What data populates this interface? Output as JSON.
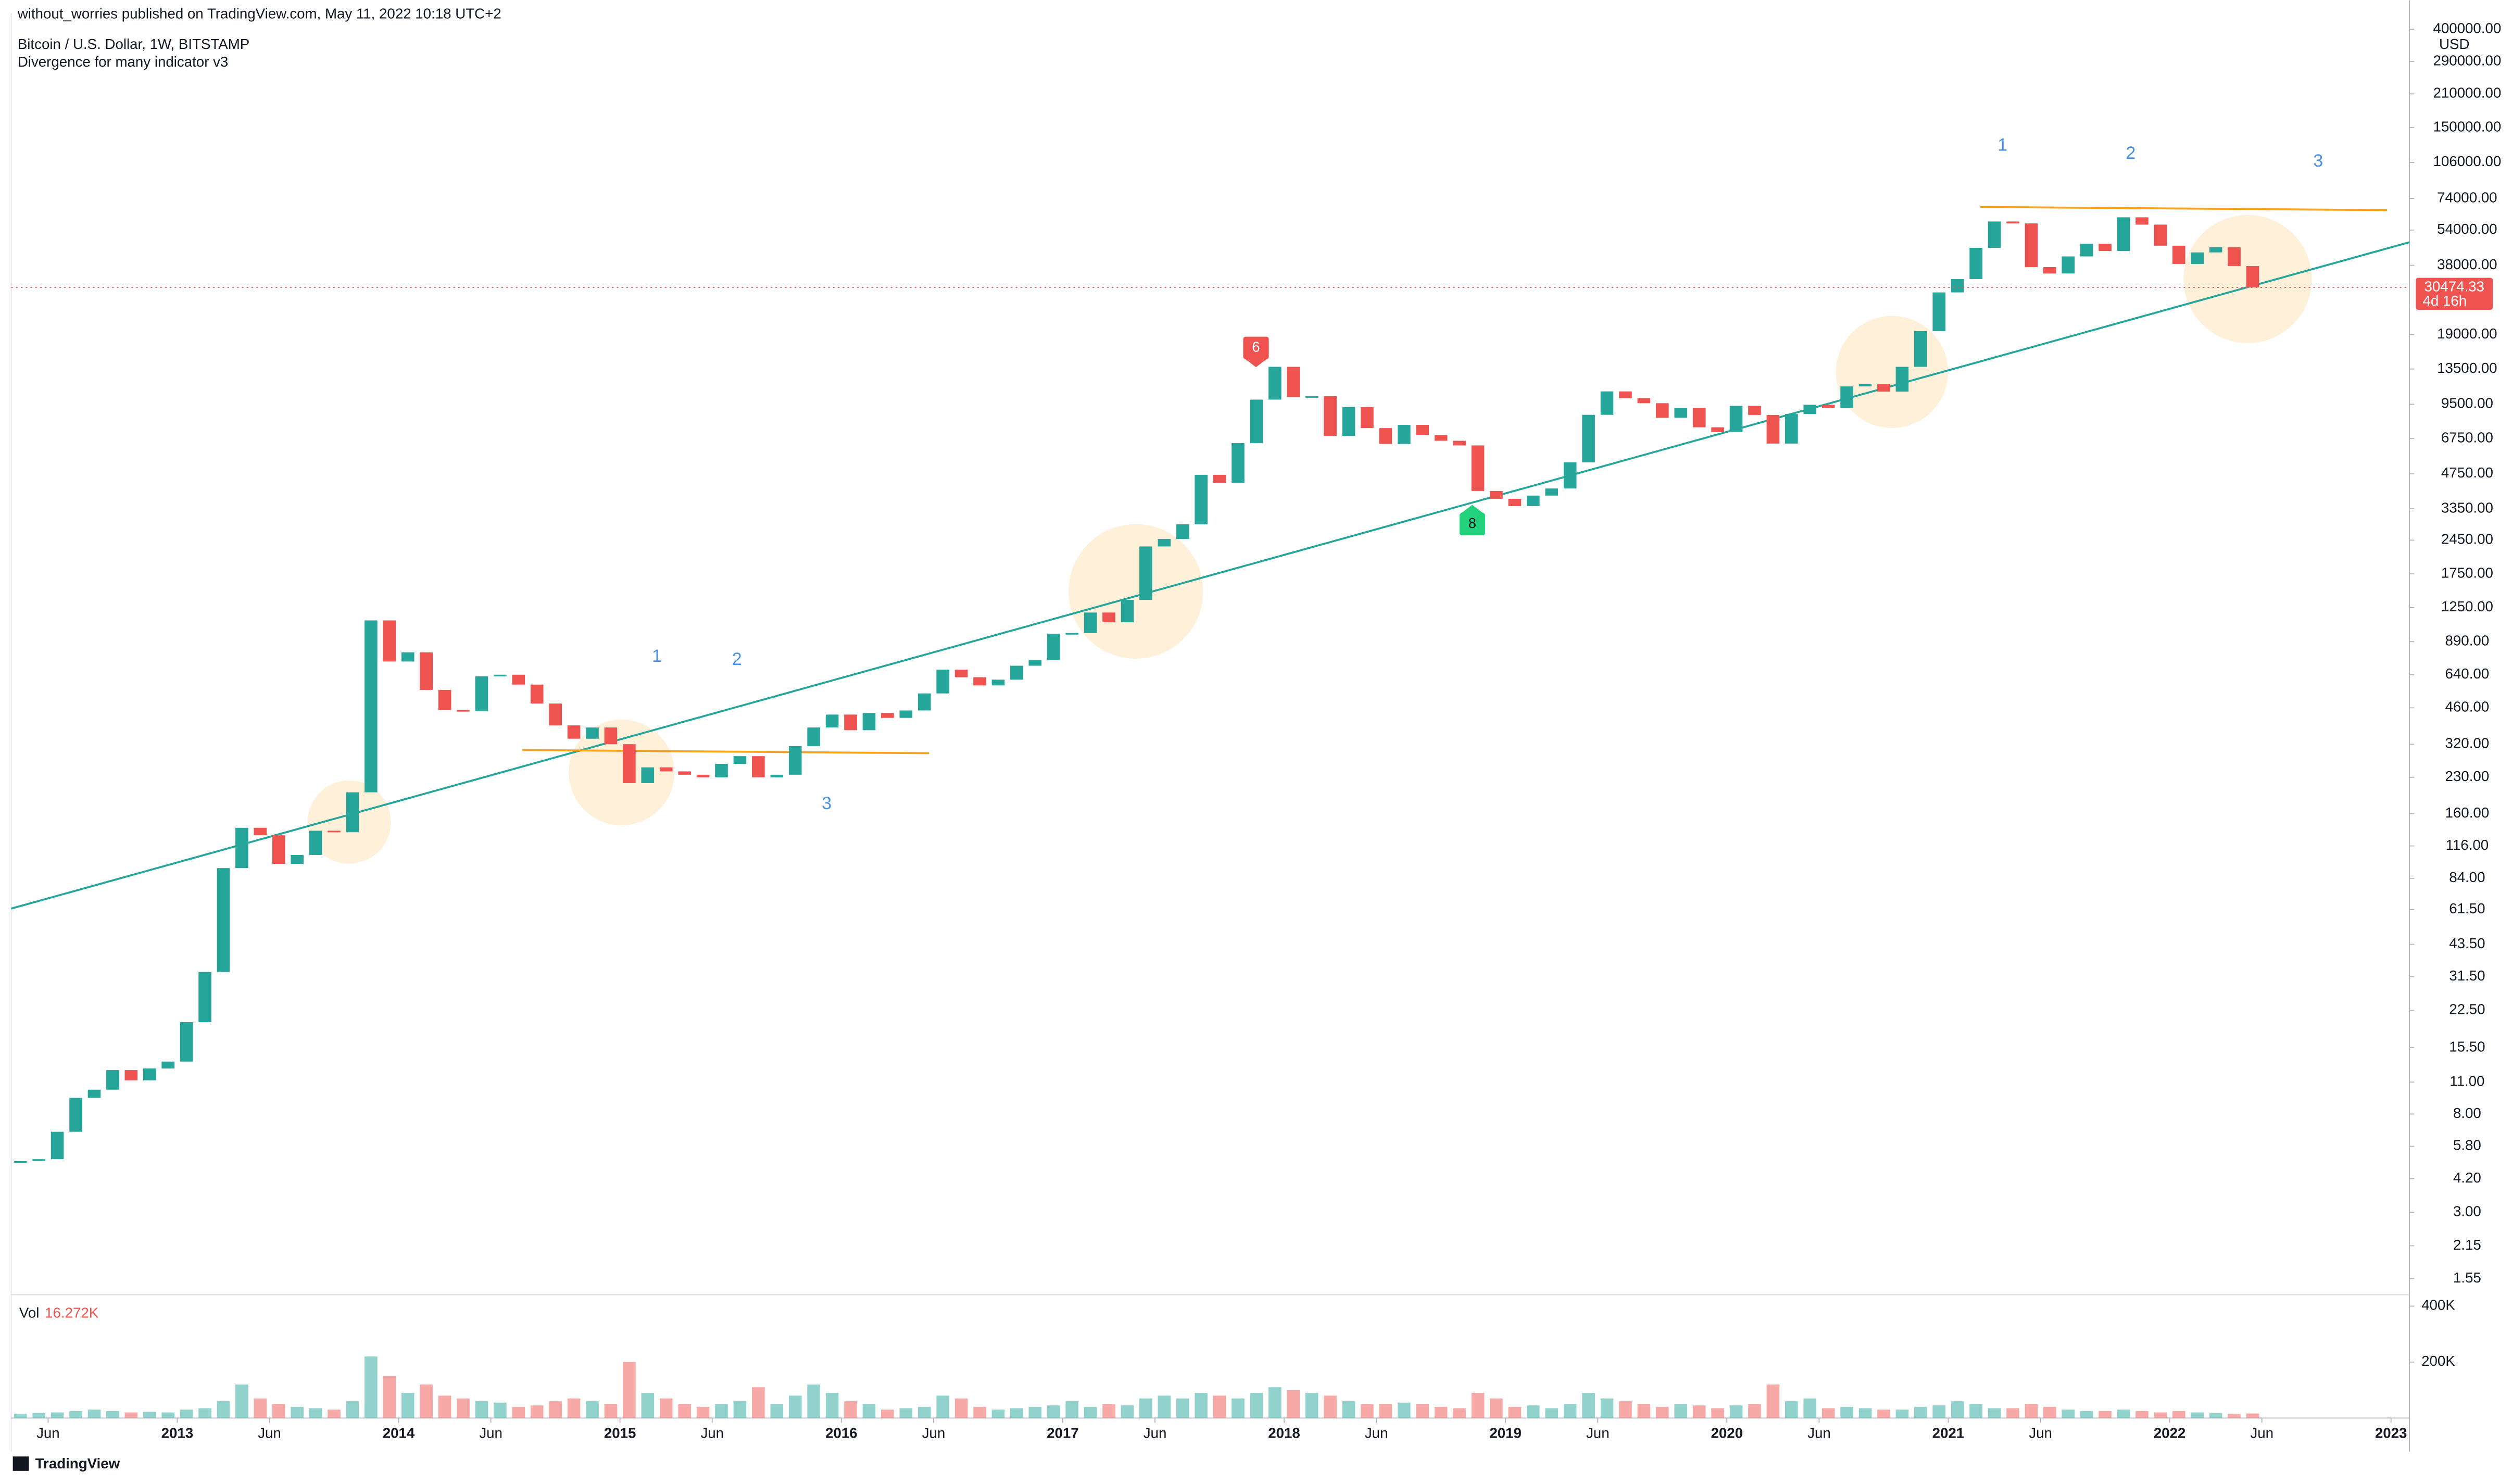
{
  "header": {
    "publisher": "without_worries published on TradingView.com, May 11, 2022 10:18 UTC+2",
    "symbol": "Bitcoin / U.S. Dollar, 1W, BITSTAMP",
    "indicator": "Divergence for many indicator v3"
  },
  "chart_data": [
    {
      "type": "candlestick",
      "log_scale": true,
      "up_color": "#26a69a",
      "down_color": "#ef5350",
      "y_unit": "USD",
      "countdown": "4d 16h",
      "annotations": [
        "1",
        "2",
        "3",
        "1",
        "2",
        "3"
      ],
      "signals": [
        "6",
        "8"
      ],
      "x": [
        "2012-04",
        "2012-05",
        "2012-06",
        "2012-07",
        "2012-08",
        "2012-09",
        "2012-10",
        "2012-11",
        "2012-12",
        "2013-01",
        "2013-02",
        "2013-03",
        "2013-04",
        "2013-05",
        "2013-06",
        "2013-07",
        "2013-08",
        "2013-09",
        "2013-10",
        "2013-11",
        "2013-12",
        "2014-01",
        "2014-02",
        "2014-03",
        "2014-04",
        "2014-05",
        "2014-06",
        "2014-07",
        "2014-08",
        "2014-09",
        "2014-10",
        "2014-11",
        "2014-12",
        "2015-01",
        "2015-02",
        "2015-03",
        "2015-04",
        "2015-05",
        "2015-06",
        "2015-07",
        "2015-08",
        "2015-09",
        "2015-10",
        "2015-11",
        "2015-12",
        "2016-01",
        "2016-02",
        "2016-03",
        "2016-04",
        "2016-05",
        "2016-06",
        "2016-07",
        "2016-08",
        "2016-09",
        "2016-10",
        "2016-11",
        "2016-12",
        "2017-01",
        "2017-02",
        "2017-03",
        "2017-04",
        "2017-05",
        "2017-06",
        "2017-07",
        "2017-08",
        "2017-09",
        "2017-10",
        "2017-11",
        "2017-12",
        "2018-01",
        "2018-02",
        "2018-03",
        "2018-04",
        "2018-05",
        "2018-06",
        "2018-07",
        "2018-08",
        "2018-09",
        "2018-10",
        "2018-11",
        "2018-12",
        "2019-01",
        "2019-02",
        "2019-03",
        "2019-04",
        "2019-05",
        "2019-06",
        "2019-07",
        "2019-08",
        "2019-09",
        "2019-10",
        "2019-11",
        "2019-12",
        "2020-01",
        "2020-02",
        "2020-03",
        "2020-04",
        "2020-05",
        "2020-06",
        "2020-07",
        "2020-08",
        "2020-09",
        "2020-10",
        "2020-11",
        "2020-12",
        "2021-01",
        "2021-02",
        "2021-03",
        "2021-04",
        "2021-05",
        "2021-06",
        "2021-07",
        "2021-08",
        "2021-09",
        "2021-10",
        "2021-11",
        "2021-12",
        "2022-01",
        "2022-02",
        "2022-03",
        "2022-04",
        "2022-05"
      ],
      "values": [
        5.0,
        5.1,
        6.7,
        9.4,
        10.2,
        12.4,
        11.2,
        12.6,
        13.5,
        20,
        33,
        93,
        139,
        129,
        97,
        106,
        135,
        133,
        198,
        1100,
        730,
        800,
        550,
        450,
        445,
        630,
        640,
        580,
        480,
        386,
        338,
        378,
        320,
        217,
        254,
        244,
        236,
        230,
        263,
        284,
        230,
        236,
        314,
        378,
        430,
        368,
        437,
        416,
        448,
        531,
        673,
        624,
        575,
        609,
        700,
        742,
        963,
        970,
        1190,
        1080,
        1350,
        2300,
        2480,
        2870,
        4700,
        4340,
        6450,
        9950,
        13800,
        10200,
        10300,
        6930,
        9240,
        7490,
        6390,
        7730,
        7000,
        6600,
        6300,
        4000,
        3700,
        3440,
        3820,
        4100,
        5320,
        8550,
        10800,
        10100,
        9600,
        8300,
        9150,
        7550,
        7200,
        9350,
        8540,
        6420,
        8620,
        9450,
        9140,
        11350,
        11650,
        10780,
        13800,
        19700,
        28990,
        33100,
        45200,
        58800,
        57700,
        37300,
        35000,
        41500,
        47100,
        43800,
        61300,
        57000,
        46200,
        38500,
        43200,
        45500,
        37700,
        30474.33
      ],
      "xlim": [
        "2012-04",
        "2023-02"
      ],
      "xticks": [
        {
          "value": "2012-06",
          "label": "Jun"
        },
        {
          "value": "2013-01",
          "label": "2013"
        },
        {
          "value": "2013-06",
          "label": "Jun"
        },
        {
          "value": "2014-01",
          "label": "2014"
        },
        {
          "value": "2014-06",
          "label": "Jun"
        },
        {
          "value": "2015-01",
          "label": "2015"
        },
        {
          "value": "2015-06",
          "label": "Jun"
        },
        {
          "value": "2016-01",
          "label": "2016"
        },
        {
          "value": "2016-06",
          "label": "Jun"
        },
        {
          "value": "2017-01",
          "label": "2017"
        },
        {
          "value": "2017-06",
          "label": "Jun"
        },
        {
          "value": "2018-01",
          "label": "2018"
        },
        {
          "value": "2018-06",
          "label": "Jun"
        },
        {
          "value": "2019-01",
          "label": "2019"
        },
        {
          "value": "2019-06",
          "label": "Jun"
        },
        {
          "value": "2020-01",
          "label": "2020"
        },
        {
          "value": "2020-06",
          "label": "Jun"
        },
        {
          "value": "2021-01",
          "label": "2021"
        },
        {
          "value": "2021-06",
          "label": "Jun"
        },
        {
          "value": "2022-01",
          "label": "2022"
        },
        {
          "value": "2022-06",
          "label": "Jun"
        },
        {
          "value": "2023-01",
          "label": "2023"
        }
      ],
      "ylim": [
        1.32,
        470000
      ],
      "yticks": [
        {
          "value": 400000,
          "label": "400000.00"
        },
        {
          "value": 290000,
          "label": "290000.00"
        },
        {
          "value": 210000,
          "label": "210000.00"
        },
        {
          "value": 150000,
          "label": "150000.00"
        },
        {
          "value": 106000,
          "label": "106000.00"
        },
        {
          "value": 74000,
          "label": "74000.00"
        },
        {
          "value": 54000,
          "label": "54000.00"
        },
        {
          "value": 38000,
          "label": "38000.00"
        },
        {
          "value": 19000,
          "label": "19000.00"
        },
        {
          "value": 13500,
          "label": "13500.00"
        },
        {
          "value": 9500,
          "label": "9500.00"
        },
        {
          "value": 6750,
          "label": "6750.00"
        },
        {
          "value": 4750,
          "label": "4750.00"
        },
        {
          "value": 3350,
          "label": "3350.00"
        },
        {
          "value": 2450,
          "label": "2450.00"
        },
        {
          "value": 1750,
          "label": "1750.00"
        },
        {
          "value": 1250,
          "label": "1250.00"
        },
        {
          "value": 890,
          "label": "890.00"
        },
        {
          "value": 640,
          "label": "640.00"
        },
        {
          "value": 460,
          "label": "460.00"
        },
        {
          "value": 320,
          "label": "320.00"
        },
        {
          "value": 230,
          "label": "230.00"
        },
        {
          "value": 160,
          "label": "160.00"
        },
        {
          "value": 116,
          "label": "116.00"
        },
        {
          "value": 84,
          "label": "84.00"
        },
        {
          "value": 61.5,
          "label": "61.50"
        },
        {
          "value": 43.5,
          "label": "43.50"
        },
        {
          "value": 31.5,
          "label": "31.50"
        },
        {
          "value": 22.5,
          "label": "22.50"
        },
        {
          "value": 15.5,
          "label": "15.50"
        },
        {
          "value": 11,
          "label": "11.00"
        },
        {
          "value": 8,
          "label": "8.00"
        },
        {
          "value": 5.8,
          "label": "5.80"
        },
        {
          "value": 4.2,
          "label": "4.20"
        },
        {
          "value": 3,
          "label": "3.00"
        },
        {
          "value": 2.15,
          "label": "2.15"
        },
        {
          "value": 1.55,
          "label": "1.55"
        }
      ]
    },
    {
      "type": "bar",
      "title": "Vol",
      "legend_value": "16.272K",
      "values": [
        15000,
        18000,
        20000,
        25000,
        30000,
        25000,
        20000,
        22000,
        20000,
        30000,
        35000,
        60000,
        120000,
        70000,
        50000,
        40000,
        35000,
        30000,
        60000,
        220000,
        150000,
        90000,
        120000,
        80000,
        70000,
        60000,
        55000,
        40000,
        45000,
        60000,
        70000,
        60000,
        50000,
        200000,
        90000,
        70000,
        50000,
        40000,
        50000,
        60000,
        110000,
        50000,
        80000,
        120000,
        90000,
        60000,
        50000,
        30000,
        35000,
        40000,
        80000,
        70000,
        40000,
        30000,
        35000,
        40000,
        45000,
        60000,
        40000,
        50000,
        45000,
        70000,
        80000,
        70000,
        90000,
        80000,
        70000,
        90000,
        110000,
        100000,
        90000,
        80000,
        60000,
        50000,
        50000,
        55000,
        50000,
        40000,
        35000,
        90000,
        70000,
        40000,
        45000,
        35000,
        50000,
        90000,
        70000,
        60000,
        50000,
        40000,
        50000,
        45000,
        35000,
        45000,
        50000,
        120000,
        60000,
        70000,
        35000,
        40000,
        35000,
        30000,
        30000,
        40000,
        45000,
        60000,
        50000,
        35000,
        35000,
        50000,
        40000,
        30000,
        25000,
        25000,
        30000,
        25000,
        20000,
        25000,
        20000,
        18000,
        15000,
        16272
      ],
      "ylim": [
        0,
        441000
      ],
      "yticks": [
        {
          "value": 200000,
          "label": "200K"
        },
        {
          "value": 400000,
          "label": "400K"
        }
      ]
    }
  ],
  "footer": {
    "brand": "TradingView"
  }
}
